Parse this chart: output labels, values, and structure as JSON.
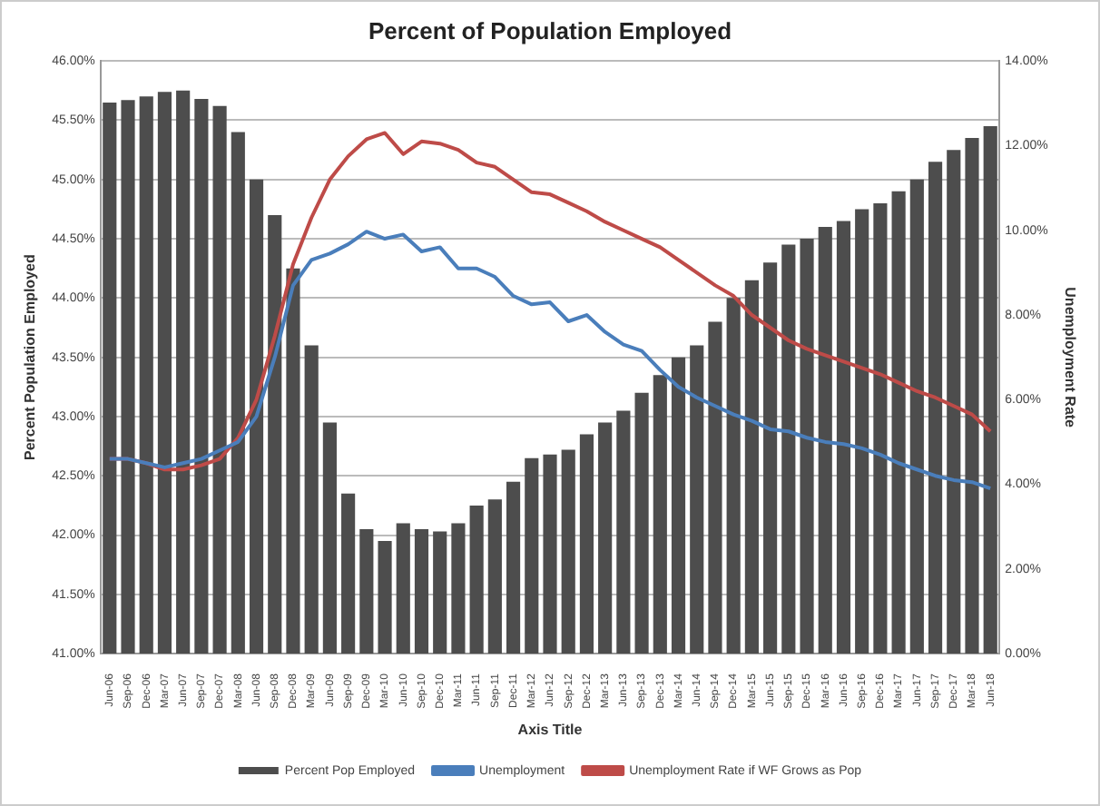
{
  "chart_data": {
    "type": "bar",
    "title": "Percent of Population Employed",
    "xlabel": "Axis Title",
    "ylabel": "Percent Population Employed",
    "y2label": "Unemployment Rate",
    "categories": [
      "Jun-06",
      "Sep-06",
      "Dec-06",
      "Mar-07",
      "Jun-07",
      "Sep-07",
      "Dec-07",
      "Mar-08",
      "Jun-08",
      "Sep-08",
      "Dec-08",
      "Mar-09",
      "Jun-09",
      "Sep-09",
      "Dec-09",
      "Mar-10",
      "Jun-10",
      "Sep-10",
      "Dec-10",
      "Mar-11",
      "Jun-11",
      "Sep-11",
      "Dec-11",
      "Mar-12",
      "Jun-12",
      "Sep-12",
      "Dec-12",
      "Mar-13",
      "Jun-13",
      "Sep-13",
      "Dec-13",
      "Mar-14",
      "Jun-14",
      "Sep-14",
      "Dec-14",
      "Mar-15",
      "Jun-15",
      "Sep-15",
      "Dec-15",
      "Mar-16",
      "Jun-16",
      "Sep-16",
      "Dec-16",
      "Mar-17",
      "Jun-17",
      "Sep-17",
      "Dec-17",
      "Mar-18",
      "Jun-18"
    ],
    "series": [
      {
        "name": "Percent Pop Employed",
        "color": "#4d4d4d",
        "values": [
          45.65,
          45.67,
          45.7,
          45.74,
          45.75,
          45.68,
          45.62,
          45.4,
          45.0,
          44.7,
          44.25,
          43.6,
          42.95,
          42.35,
          42.05,
          41.95,
          42.1,
          42.05,
          42.03,
          42.1,
          42.25,
          42.3,
          42.45,
          42.65,
          42.68,
          42.72,
          42.85,
          42.95,
          43.05,
          43.2,
          43.35,
          43.5,
          43.6,
          43.8,
          44.0,
          44.15,
          44.3,
          44.45,
          44.5,
          44.6,
          44.65,
          44.75,
          44.8,
          44.9,
          45.0,
          45.15,
          45.25,
          45.35,
          45.45
        ]
      },
      {
        "name": "Unemployment",
        "type": "line",
        "axis": "y2",
        "color": "#4a7ebb",
        "values": [
          4.6,
          4.6,
          4.5,
          4.4,
          4.5,
          4.6,
          4.8,
          5.0,
          5.6,
          7.0,
          8.7,
          9.3,
          9.45,
          9.67,
          9.97,
          9.8,
          9.9,
          9.5,
          9.6,
          9.1,
          9.1,
          8.9,
          8.45,
          8.25,
          8.3,
          7.85,
          8.0,
          7.6,
          7.3,
          7.15,
          6.7,
          6.3,
          6.05,
          5.85,
          5.65,
          5.5,
          5.3,
          5.25,
          5.1,
          5.0,
          4.95,
          4.85,
          4.7,
          4.5,
          4.35,
          4.2,
          4.1,
          4.05,
          3.9
        ]
      },
      {
        "name": "Unemployment Rate if WF Grows as Pop",
        "type": "line",
        "axis": "y2",
        "color": "#be4b48",
        "values": [
          4.6,
          4.6,
          4.5,
          4.35,
          4.35,
          4.45,
          4.6,
          5.1,
          6.0,
          7.5,
          9.2,
          10.3,
          11.2,
          11.75,
          12.15,
          12.3,
          11.8,
          12.1,
          12.05,
          11.9,
          11.6,
          11.5,
          11.2,
          10.9,
          10.85,
          10.65,
          10.45,
          10.2,
          10.0,
          9.8,
          9.6,
          9.3,
          9.0,
          8.7,
          8.45,
          8.0,
          7.7,
          7.4,
          7.2,
          7.05,
          6.9,
          6.75,
          6.6,
          6.4,
          6.2,
          6.05,
          5.85,
          5.65,
          5.25
        ]
      }
    ],
    "ylim": [
      41,
      46
    ],
    "yticks": [
      {
        "value": 41,
        "label": "41.00%"
      },
      {
        "value": 41.5,
        "label": "41.50%"
      },
      {
        "value": 42,
        "label": "42.00%"
      },
      {
        "value": 42.5,
        "label": "42.50%"
      },
      {
        "value": 43,
        "label": "43.00%"
      },
      {
        "value": 43.5,
        "label": "43.50%"
      },
      {
        "value": 44,
        "label": "44.00%"
      },
      {
        "value": 44.5,
        "label": "44.50%"
      },
      {
        "value": 45,
        "label": "45.00%"
      },
      {
        "value": 45.5,
        "label": "45.50%"
      },
      {
        "value": 46,
        "label": "46.00%"
      }
    ],
    "y2lim": [
      0,
      14
    ],
    "y2ticks": [
      {
        "value": 0,
        "label": "0.00%"
      },
      {
        "value": 2,
        "label": "2.00%"
      },
      {
        "value": 4,
        "label": "4.00%"
      },
      {
        "value": 6,
        "label": "6.00%"
      },
      {
        "value": 8,
        "label": "8.00%"
      },
      {
        "value": 10,
        "label": "10.00%"
      },
      {
        "value": 12,
        "label": "12.00%"
      },
      {
        "value": 14,
        "label": "14.00%"
      }
    ],
    "grid": "y",
    "legend": "bottom",
    "marker": "none",
    "line_style": "solid"
  }
}
